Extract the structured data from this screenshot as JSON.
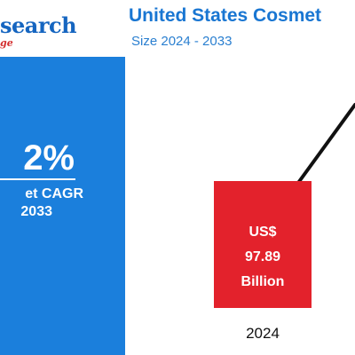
{
  "brand": {
    "name": "search",
    "tagline": "ge"
  },
  "header": {
    "title": "United States Cosmet",
    "subtitle": "Size 2024 - 2033"
  },
  "cagr": {
    "value": "2%",
    "label": "et CAGR",
    "period": "2033"
  },
  "colors": {
    "accent_blue": "#1b7fdc",
    "bar_red": "#e3222c",
    "title_blue": "#1976d2"
  },
  "chart_data": {
    "type": "bar",
    "categories": [
      "2024"
    ],
    "values": [
      97.89
    ],
    "unit": "Billion",
    "currency": "US$",
    "data_labels": [
      [
        "US$",
        "97.89",
        "Billion"
      ]
    ],
    "trend_line": true
  }
}
